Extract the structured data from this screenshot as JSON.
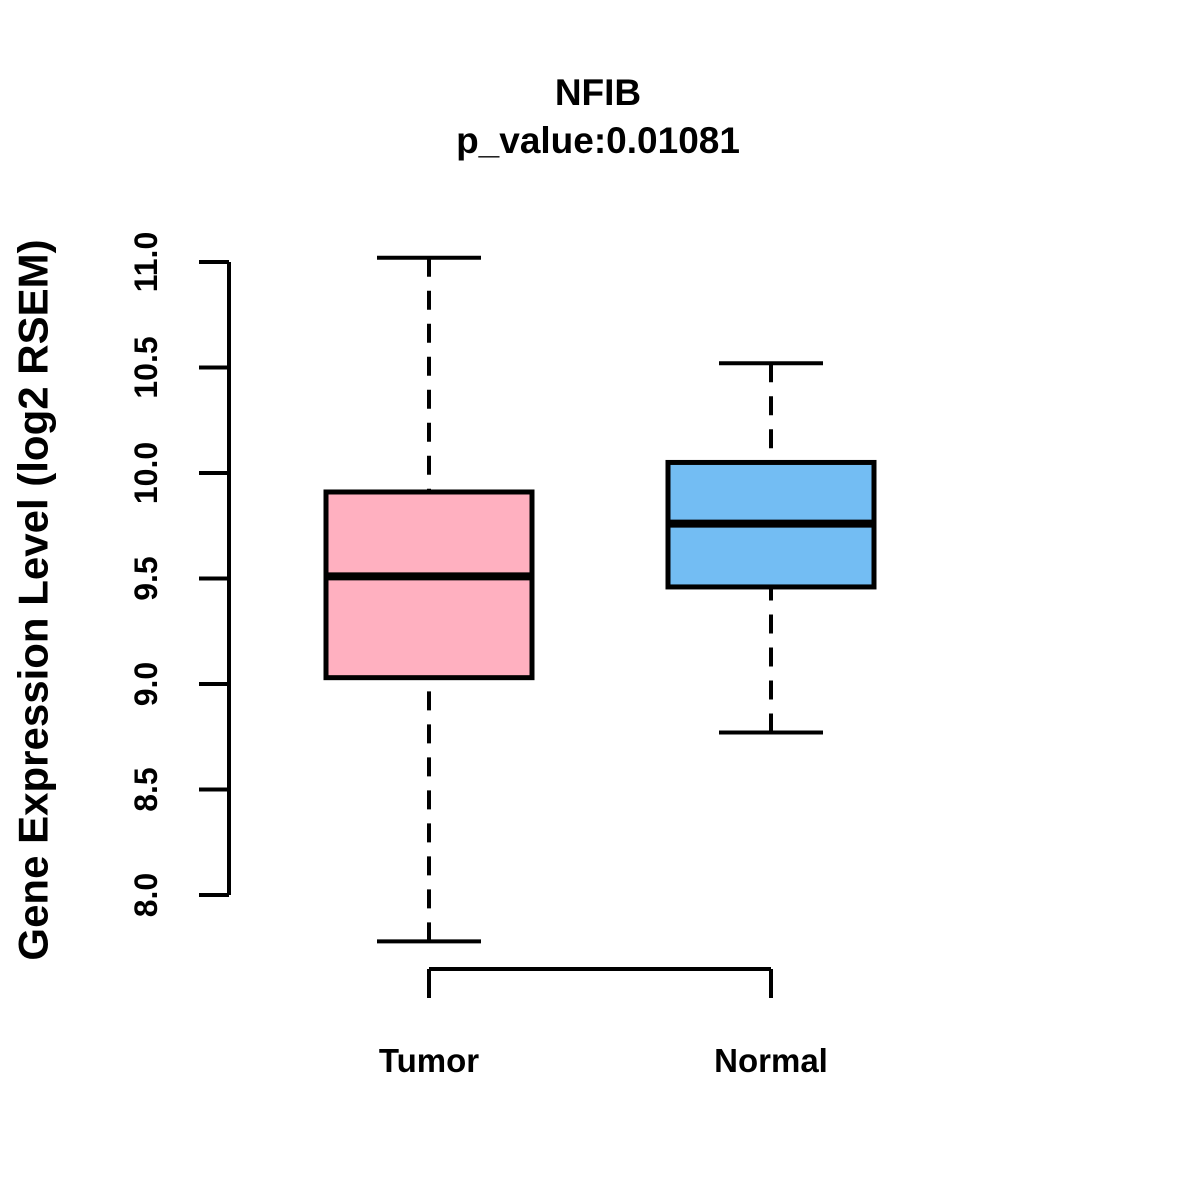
{
  "chart_data": {
    "type": "boxplot",
    "title": "NFIB",
    "subtitle": "p_value:0.01081",
    "gene": "NFIB",
    "p_value": 0.01081,
    "ylabel": "Gene Expression Level (log2 RSEM)",
    "ylim": [
      8.0,
      11.0
    ],
    "yticks": [
      8.0,
      8.5,
      9.0,
      9.5,
      10.0,
      10.5,
      11.0
    ],
    "ytick_labels": [
      "8.0",
      "8.5",
      "9.0",
      "9.5",
      "10.0",
      "10.5",
      "11.0"
    ],
    "categories": [
      "Tumor",
      "Normal"
    ],
    "grid": false,
    "legend": "none",
    "series": [
      {
        "name": "Tumor",
        "color": "#FFB0C0",
        "whisker_low": 7.78,
        "q1": 9.03,
        "median": 9.51,
        "q3": 9.91,
        "whisker_high": 11.02,
        "outliers": []
      },
      {
        "name": "Normal",
        "color": "#73BDF3",
        "whisker_low": 8.77,
        "q1": 9.46,
        "median": 9.76,
        "q3": 10.05,
        "whisker_high": 10.52,
        "outliers": []
      }
    ],
    "colors": {
      "tumor_fill": "#FFB0C0",
      "normal_fill": "#73BDF3",
      "line": "#000000"
    }
  }
}
